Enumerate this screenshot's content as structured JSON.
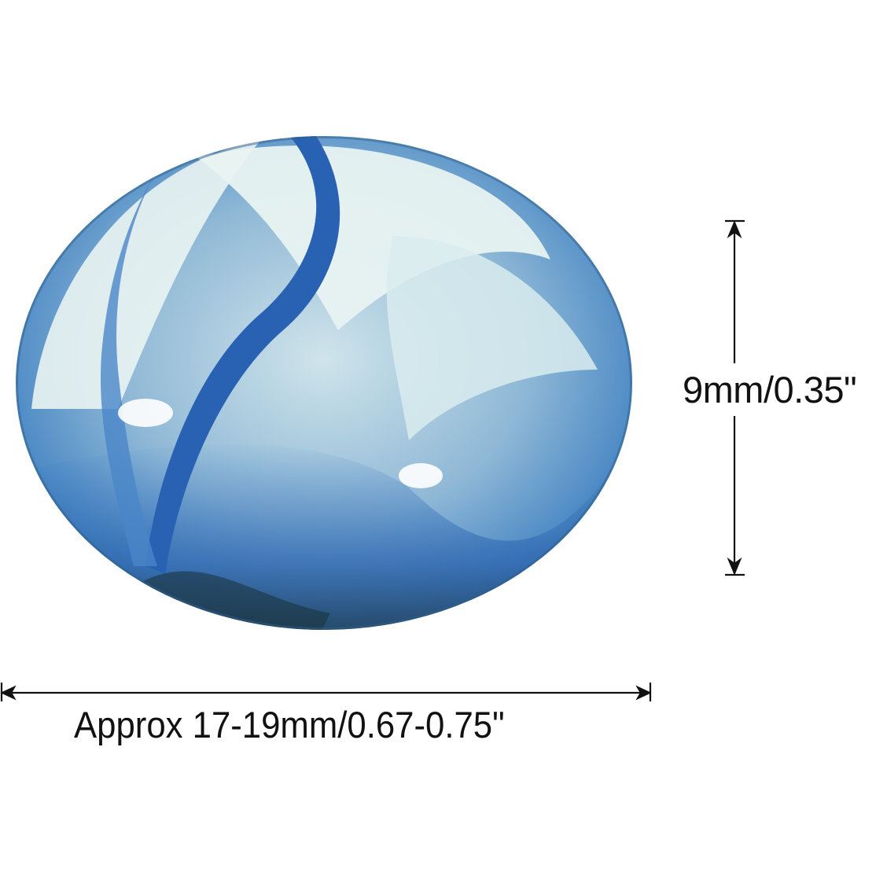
{
  "product": {
    "subject": "blue and white swirl glass marble",
    "colors": {
      "glass_blue": "#3f7fc0",
      "swirl_dark_blue": "#2a62b3",
      "white_swirl": "#e6f2f2",
      "dark_shadow": "#1b3440"
    }
  },
  "dimensions": {
    "height_label": "9mm/0.35\"",
    "width_label": "Approx 17-19mm/0.67-0.75\""
  }
}
